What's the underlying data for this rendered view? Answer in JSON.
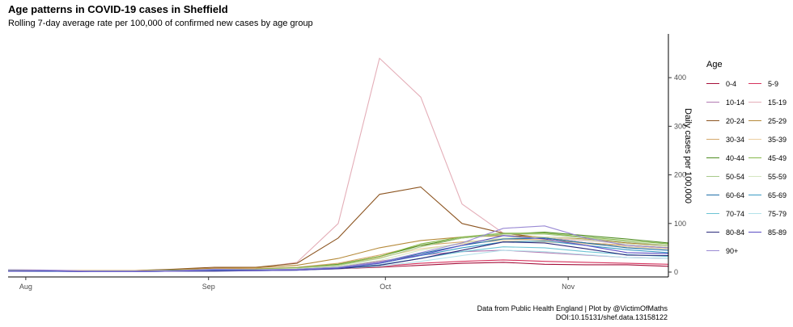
{
  "chart_data": {
    "type": "line",
    "title": "Age patterns in COVID-19 cases in Sheffield",
    "subtitle": "Rolling 7-day average rate per 100,000 of confirmed new cases by age group",
    "ylabel": "Daily cases per 100,000",
    "xlabel": "",
    "x_start": "2020-07-29",
    "x_end": "2020-11-18",
    "x_ticks": [
      {
        "label": "Aug",
        "date": "2020-08-01"
      },
      {
        "label": "Sep",
        "date": "2020-09-01"
      },
      {
        "label": "Oct",
        "date": "2020-10-01"
      },
      {
        "label": "Nov",
        "date": "2020-11-01"
      }
    ],
    "y_ticks": [
      0,
      100,
      200,
      300,
      400
    ],
    "ylim": [
      -10,
      490
    ],
    "y_axis_position": "right",
    "grid": false,
    "legend_title": "Age",
    "legend_position": "right",
    "x_sample_dates": [
      "2020-07-29",
      "2020-08-05",
      "2020-08-12",
      "2020-08-19",
      "2020-08-26",
      "2020-09-02",
      "2020-09-09",
      "2020-09-16",
      "2020-09-23",
      "2020-09-30",
      "2020-10-07",
      "2020-10-14",
      "2020-10-21",
      "2020-10-28",
      "2020-11-04",
      "2020-11-11",
      "2020-11-18"
    ],
    "series": [
      {
        "name": "0-4",
        "color": "#a50f3a",
        "values": [
          3,
          2,
          2,
          2,
          3,
          4,
          4,
          5,
          7,
          10,
          14,
          18,
          20,
          16,
          15,
          15,
          12
        ]
      },
      {
        "name": "5-9",
        "color": "#d6335e",
        "values": [
          3,
          2,
          2,
          2,
          3,
          4,
          5,
          6,
          8,
          12,
          18,
          22,
          25,
          22,
          20,
          18,
          16
        ]
      },
      {
        "name": "10-14",
        "color": "#b27ab2",
        "values": [
          4,
          3,
          3,
          2,
          3,
          5,
          6,
          8,
          12,
          22,
          35,
          42,
          45,
          40,
          35,
          30,
          28
        ]
      },
      {
        "name": "15-19",
        "color": "#e4aeb8",
        "values": [
          5,
          4,
          3,
          3,
          5,
          8,
          8,
          20,
          100,
          440,
          360,
          140,
          80,
          70,
          65,
          58,
          55
        ]
      },
      {
        "name": "20-24",
        "color": "#8c5420",
        "values": [
          4,
          3,
          3,
          3,
          6,
          10,
          10,
          18,
          70,
          160,
          175,
          100,
          80,
          70,
          60,
          55,
          50
        ]
      },
      {
        "name": "25-29",
        "color": "#b58a3a",
        "values": [
          4,
          3,
          3,
          3,
          5,
          8,
          9,
          14,
          28,
          50,
          65,
          72,
          75,
          72,
          68,
          60,
          55
        ]
      },
      {
        "name": "30-34",
        "color": "#d4a86a",
        "values": [
          4,
          3,
          3,
          3,
          4,
          6,
          7,
          10,
          18,
          35,
          55,
          62,
          68,
          66,
          60,
          55,
          50
        ]
      },
      {
        "name": "35-39",
        "color": "#ebcfa0",
        "values": [
          3,
          3,
          2,
          2,
          4,
          5,
          6,
          9,
          15,
          30,
          48,
          58,
          65,
          62,
          58,
          52,
          48
        ]
      },
      {
        "name": "40-44",
        "color": "#4d8c1f",
        "values": [
          3,
          2,
          2,
          2,
          4,
          5,
          6,
          9,
          16,
          32,
          55,
          70,
          78,
          82,
          75,
          68,
          60
        ]
      },
      {
        "name": "45-49",
        "color": "#86b84a",
        "values": [
          3,
          2,
          2,
          2,
          3,
          5,
          6,
          9,
          15,
          32,
          58,
          72,
          80,
          80,
          72,
          65,
          58
        ]
      },
      {
        "name": "50-54",
        "color": "#a7c98a",
        "values": [
          3,
          2,
          2,
          2,
          3,
          4,
          5,
          8,
          14,
          28,
          52,
          70,
          78,
          78,
          70,
          62,
          55
        ]
      },
      {
        "name": "55-59",
        "color": "#d5e6c0",
        "values": [
          2,
          2,
          2,
          2,
          3,
          4,
          5,
          7,
          12,
          24,
          45,
          60,
          70,
          72,
          66,
          58,
          52
        ]
      },
      {
        "name": "60-64",
        "color": "#1f6fa8",
        "values": [
          2,
          2,
          2,
          2,
          3,
          4,
          4,
          6,
          10,
          20,
          38,
          55,
          68,
          70,
          60,
          50,
          45
        ]
      },
      {
        "name": "65-69",
        "color": "#3a9bc4",
        "values": [
          2,
          2,
          2,
          1,
          2,
          3,
          4,
          5,
          9,
          18,
          34,
          50,
          62,
          64,
          55,
          46,
          40
        ]
      },
      {
        "name": "70-74",
        "color": "#6cc4d4",
        "values": [
          2,
          2,
          1,
          1,
          2,
          3,
          3,
          4,
          8,
          15,
          28,
          42,
          52,
          50,
          42,
          36,
          32
        ]
      },
      {
        "name": "75-79",
        "color": "#b4e2ea",
        "values": [
          2,
          1,
          1,
          1,
          2,
          2,
          3,
          4,
          7,
          12,
          22,
          34,
          45,
          42,
          36,
          30,
          28
        ]
      },
      {
        "name": "80-84",
        "color": "#2a2a7a",
        "values": [
          2,
          2,
          1,
          1,
          2,
          2,
          3,
          4,
          7,
          14,
          28,
          45,
          62,
          60,
          48,
          35,
          34
        ]
      },
      {
        "name": "85-89",
        "color": "#5b4ec4",
        "values": [
          2,
          2,
          1,
          1,
          2,
          3,
          3,
          4,
          8,
          18,
          35,
          55,
          75,
          68,
          55,
          40,
          38
        ]
      },
      {
        "name": "90+",
        "color": "#9a8ad4",
        "values": [
          5,
          4,
          2,
          2,
          3,
          6,
          5,
          6,
          10,
          20,
          40,
          60,
          90,
          95,
          70,
          55,
          50
        ]
      }
    ]
  },
  "caption": {
    "line1": "Data from Public Health England | Plot by @VictimOfMaths",
    "line2": "DOI:10.15131/shef.data.13158122"
  }
}
